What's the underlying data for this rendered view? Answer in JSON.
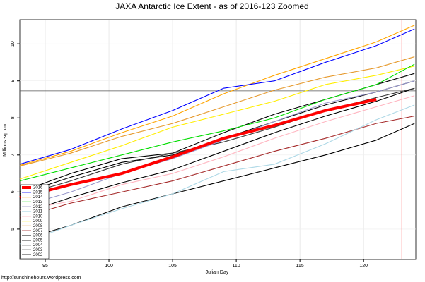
{
  "chart_data": {
    "type": "line",
    "title": "JAXA Antarctic Ice Extent - as of 2016-123 Zoomed",
    "x_label": "Julian Day",
    "y_label": "Millions sq. km.",
    "source": "http://sunshinehours.wordpress.com",
    "x": [
      93,
      97,
      101,
      105,
      109,
      113,
      117,
      121,
      124
    ],
    "xlim": [
      93,
      124.1
    ],
    "ylim": [
      4.18,
      10.65
    ],
    "xticks": [
      95,
      100,
      105,
      110,
      115,
      120
    ],
    "yticks": [
      5,
      6,
      7,
      8,
      9,
      10
    ],
    "grid": true,
    "legend": "bottom-left",
    "hline": 8.73,
    "vline": 123,
    "series": [
      {
        "name": "2016",
        "color": "#ff0000",
        "values": [
          5.85,
          6.2,
          6.5,
          6.95,
          7.45,
          7.8,
          8.2,
          8.5,
          null
        ]
      },
      {
        "name": "2015",
        "color": "#0000ff",
        "values": [
          6.75,
          7.15,
          7.7,
          8.2,
          8.8,
          9.0,
          9.5,
          9.95,
          10.4
        ]
      },
      {
        "name": "2014",
        "color": "#ffa500",
        "values": [
          6.72,
          7.1,
          7.6,
          8.05,
          8.65,
          9.15,
          9.6,
          10.05,
          10.5
        ]
      },
      {
        "name": "2013",
        "color": "#00dd00",
        "values": [
          6.3,
          6.65,
          7.0,
          7.35,
          7.65,
          8.0,
          8.5,
          8.9,
          9.45
        ]
      },
      {
        "name": "2012",
        "color": "#9999cc",
        "values": [
          5.6,
          6.0,
          6.5,
          6.9,
          7.4,
          7.9,
          8.4,
          8.7,
          9.0
        ]
      },
      {
        "name": "2011",
        "color": "#add8e6",
        "values": [
          4.6,
          5.1,
          5.55,
          5.95,
          6.55,
          6.75,
          7.3,
          7.95,
          8.35
        ]
      },
      {
        "name": "2010",
        "color": "#ffb6c1",
        "values": [
          5.5,
          5.75,
          6.2,
          6.5,
          6.95,
          7.45,
          7.9,
          8.3,
          8.6
        ]
      },
      {
        "name": "2009",
        "color": "#ffee00",
        "values": [
          6.35,
          6.8,
          7.25,
          7.75,
          8.1,
          8.45,
          8.9,
          9.15,
          9.4
        ]
      },
      {
        "name": "2008",
        "color": "#e69a2e",
        "values": [
          6.7,
          7.05,
          7.5,
          7.85,
          8.3,
          8.75,
          9.1,
          9.35,
          9.65
        ]
      },
      {
        "name": "2007",
        "color": "#a52a2a",
        "values": [
          5.3,
          5.7,
          6.0,
          6.3,
          6.7,
          7.1,
          7.45,
          7.85,
          8.05
        ]
      },
      {
        "name": "2006",
        "color": "#333333",
        "values": [
          5.9,
          6.3,
          6.75,
          7.05,
          7.35,
          7.75,
          8.2,
          8.55,
          8.8
        ]
      },
      {
        "name": "2005",
        "color": "#000000",
        "values": [
          6.0,
          6.5,
          6.9,
          7.05,
          7.6,
          8.1,
          8.5,
          8.9,
          9.2
        ]
      },
      {
        "name": "2004",
        "color": "#000000",
        "values": [
          5.95,
          6.4,
          6.8,
          7.0,
          7.45,
          7.9,
          8.35,
          8.7,
          9.0
        ]
      },
      {
        "name": "2003",
        "color": "#000000",
        "values": [
          5.4,
          5.85,
          6.25,
          6.6,
          7.1,
          7.6,
          8.05,
          8.45,
          8.8
        ]
      },
      {
        "name": "2002",
        "color": "#000000",
        "values": [
          4.7,
          5.1,
          5.6,
          5.95,
          6.3,
          6.65,
          7.0,
          7.4,
          7.85
        ]
      }
    ]
  }
}
